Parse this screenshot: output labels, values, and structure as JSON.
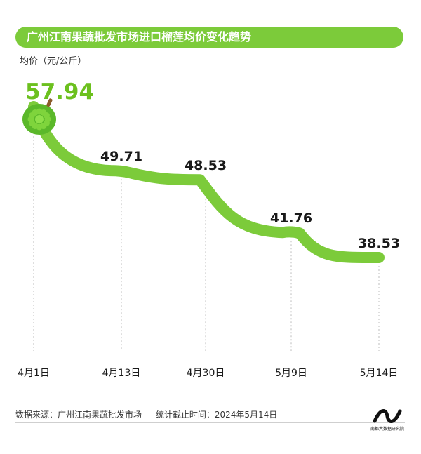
{
  "colors": {
    "accent": "#7ccb3a",
    "line": "#7ccb3a",
    "highlight_value": "#6cc01e",
    "text": "#1a1a1a",
    "grid": "#bdbdbd"
  },
  "header": {
    "title": "广州江南果蔬批发市场进口榴莲均价变化趋势"
  },
  "footer": {
    "source": "数据来源：广州江南果蔬批发市场",
    "cutoff": "统计截止时间：2024年5月14日",
    "logo_text": "南都大数据研究院"
  },
  "chart_data": {
    "type": "line",
    "title": "广州江南果蔬批发市场进口榴莲均价变化趋势",
    "ylabel": "均价（元/公斤）",
    "xlabel": "",
    "categories": [
      "4月1日",
      "4月13日",
      "4月30日",
      "5月9日",
      "5月14日"
    ],
    "values": [
      57.94,
      49.71,
      48.53,
      41.76,
      38.53
    ],
    "value_labels": [
      "57.94",
      "49.71",
      "48.53",
      "41.76",
      "38.53"
    ],
    "ylim": [
      38,
      60
    ],
    "grid": false,
    "legend": "none",
    "marker_icon": "durian-icon"
  }
}
